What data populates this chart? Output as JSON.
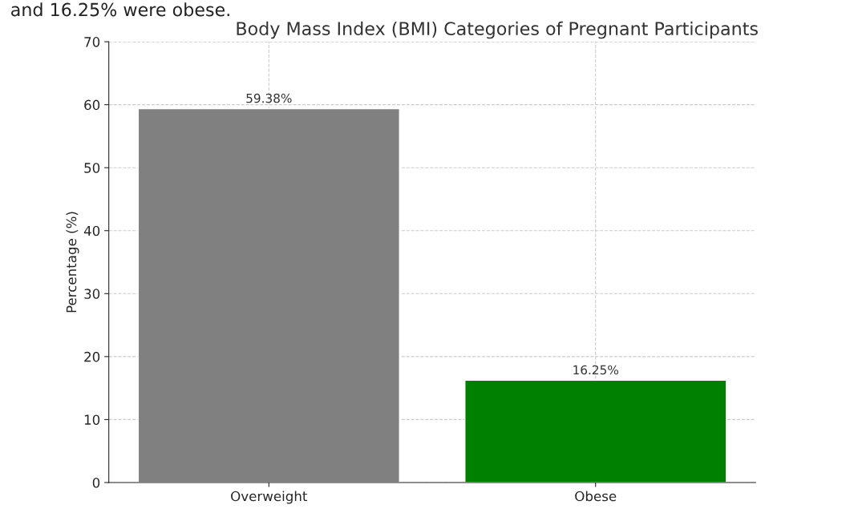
{
  "chart_data": {
    "type": "bar",
    "title": "Body Mass Index (BMI) Categories of Pregnant Participants",
    "ylabel": "Percentage (%)",
    "categories": [
      "Overweight",
      "Obese"
    ],
    "values": [
      59.38,
      16.25
    ],
    "colors": [
      "#808080",
      "#008000"
    ],
    "value_labels": [
      "59.38%",
      "16.25%"
    ],
    "ylim": [
      0,
      70
    ],
    "yticks": [
      0,
      10,
      20,
      30,
      40,
      50,
      60,
      70
    ],
    "grid": true,
    "annotations": [
      "and 16.25% were obese."
    ]
  }
}
